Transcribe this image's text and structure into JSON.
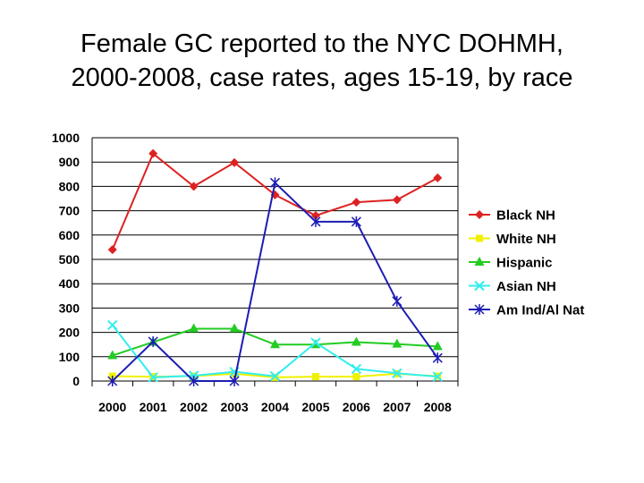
{
  "slide": {
    "title_line1": "Female GC reported to the NYC DOHMH,",
    "title_line2": "2000-2008, case rates, ages 15-19, by race"
  },
  "chart_data": {
    "type": "line",
    "title": "Female GC reported to the NYC DOHMH, 2000-2008, case rates, ages 15-19, by race",
    "xlabel": "",
    "ylabel": "",
    "x": [
      "2000",
      "2001",
      "2002",
      "2003",
      "2004",
      "2005",
      "2006",
      "2007",
      "2008"
    ],
    "ylim": [
      0,
      1000
    ],
    "yticks": [
      0,
      100,
      200,
      300,
      400,
      500,
      600,
      700,
      800,
      900,
      1000
    ],
    "grid": "horizontal",
    "legend": "right",
    "series": [
      {
        "name": "Black NH",
        "color": "#dd2222",
        "marker": "diamond",
        "values": [
          540,
          935,
          800,
          898,
          765,
          680,
          735,
          745,
          835
        ]
      },
      {
        "name": "White NH",
        "color": "#f0f000",
        "marker": "square",
        "values": [
          20,
          18,
          20,
          30,
          15,
          18,
          18,
          30,
          20
        ]
      },
      {
        "name": "Hispanic",
        "color": "#22cc22",
        "marker": "triangle",
        "values": [
          105,
          160,
          215,
          215,
          150,
          150,
          160,
          152,
          142
        ]
      },
      {
        "name": "Asian NH",
        "color": "#33eeee",
        "marker": "x",
        "values": [
          230,
          15,
          22,
          38,
          20,
          158,
          50,
          32,
          18
        ]
      },
      {
        "name": "Am Ind/Al Nat",
        "color": "#1c1cb4",
        "marker": "star",
        "values": [
          0,
          162,
          0,
          0,
          815,
          655,
          655,
          328,
          95
        ]
      }
    ]
  }
}
